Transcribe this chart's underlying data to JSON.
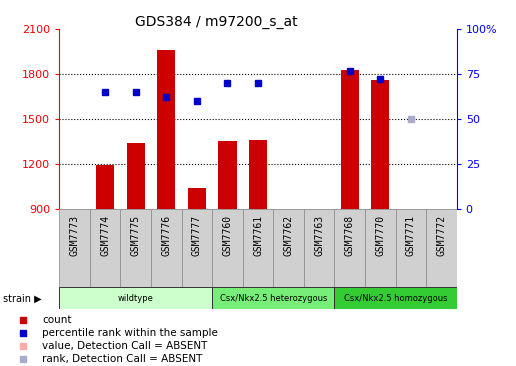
{
  "title": "GDS384 / m97200_s_at",
  "samples": [
    "GSM7773",
    "GSM7774",
    "GSM7775",
    "GSM7776",
    "GSM7777",
    "GSM7760",
    "GSM7761",
    "GSM7762",
    "GSM7763",
    "GSM7768",
    "GSM7770",
    "GSM7771",
    "GSM7772"
  ],
  "bar_values": [
    null,
    1190,
    1340,
    1960,
    1040,
    1350,
    1360,
    null,
    null,
    1830,
    1760,
    null,
    null
  ],
  "rank_values": [
    null,
    65,
    65,
    62,
    60,
    70,
    70,
    null,
    null,
    77,
    72,
    null,
    null
  ],
  "absent_bar": [
    null,
    null,
    null,
    null,
    null,
    null,
    null,
    null,
    null,
    null,
    null,
    null,
    900
  ],
  "absent_rank": [
    null,
    null,
    null,
    null,
    null,
    null,
    null,
    null,
    null,
    null,
    null,
    50,
    null
  ],
  "ylim_left": [
    900,
    2100
  ],
  "ylim_right": [
    0,
    100
  ],
  "yticks_left": [
    900,
    1200,
    1500,
    1800,
    2100
  ],
  "yticks_right": [
    0,
    25,
    50,
    75,
    100
  ],
  "bar_color": "#cc0000",
  "rank_color": "#0000cc",
  "absent_bar_color": "#ffaaaa",
  "absent_rank_color": "#aaaacc",
  "strain_groups": [
    {
      "label": "wildtype",
      "start": 0,
      "end": 5,
      "color": "#ccffcc"
    },
    {
      "label": "Csx/Nkx2.5 heterozygous",
      "start": 5,
      "end": 9,
      "color": "#77ee77"
    },
    {
      "label": "Csx/Nkx2.5 homozygous",
      "start": 9,
      "end": 13,
      "color": "#33cc33"
    }
  ],
  "legend_items": [
    {
      "label": "count",
      "color": "#cc0000"
    },
    {
      "label": "percentile rank within the sample",
      "color": "#0000cc"
    },
    {
      "label": "value, Detection Call = ABSENT",
      "color": "#ffaaaa"
    },
    {
      "label": "rank, Detection Call = ABSENT",
      "color": "#aaaacc"
    }
  ],
  "cell_color": "#d0d0d0",
  "cell_edge_color": "#888888",
  "title_fontsize": 10,
  "axis_fontsize": 8,
  "label_fontsize": 7,
  "legend_fontsize": 7.5
}
